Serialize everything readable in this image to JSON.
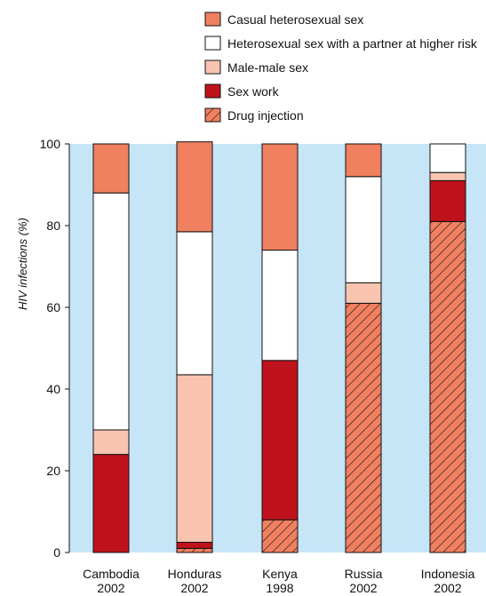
{
  "chart_data": {
    "type": "bar",
    "stacked": true,
    "ylabel": "HIV infections (%)",
    "xlabel": "",
    "ylim": [
      0,
      100
    ],
    "yticks": [
      "0",
      "20",
      "40",
      "60",
      "80",
      "100"
    ],
    "categories": [
      {
        "name": "Cambodia",
        "year": "2002"
      },
      {
        "name": "Honduras",
        "year": "2002"
      },
      {
        "name": "Kenya",
        "year": "1998"
      },
      {
        "name": "Russia",
        "year": "2002"
      },
      {
        "name": "Indonesia",
        "year": "2002"
      }
    ],
    "series": [
      {
        "name": "Drug injection",
        "color": "#f08060",
        "pattern": "hatch",
        "values": [
          0,
          1,
          8,
          61,
          81
        ]
      },
      {
        "name": "Sex work",
        "color": "#c0121c",
        "pattern": "solid",
        "values": [
          24,
          1.5,
          39,
          0,
          10
        ]
      },
      {
        "name": "Male-male sex",
        "color": "#f8c4b0",
        "pattern": "solid",
        "values": [
          6,
          41,
          0,
          5,
          2
        ]
      },
      {
        "name": "Heterosexual sex with a partner at higher risk",
        "color": "#ffffff",
        "pattern": "solid",
        "values": [
          58,
          35,
          27,
          26,
          7
        ]
      },
      {
        "name": "Casual heterosexual sex",
        "color": "#f08060",
        "pattern": "solid",
        "values": [
          12,
          22,
          26,
          8,
          0
        ]
      }
    ],
    "legend_order": [
      "Casual heterosexual sex",
      "Heterosexual sex with a partner at higher risk",
      "Male-male sex",
      "Sex work",
      "Drug injection"
    ],
    "legend_position": "top",
    "plot_background": "#c6e6f7",
    "grid": false
  }
}
